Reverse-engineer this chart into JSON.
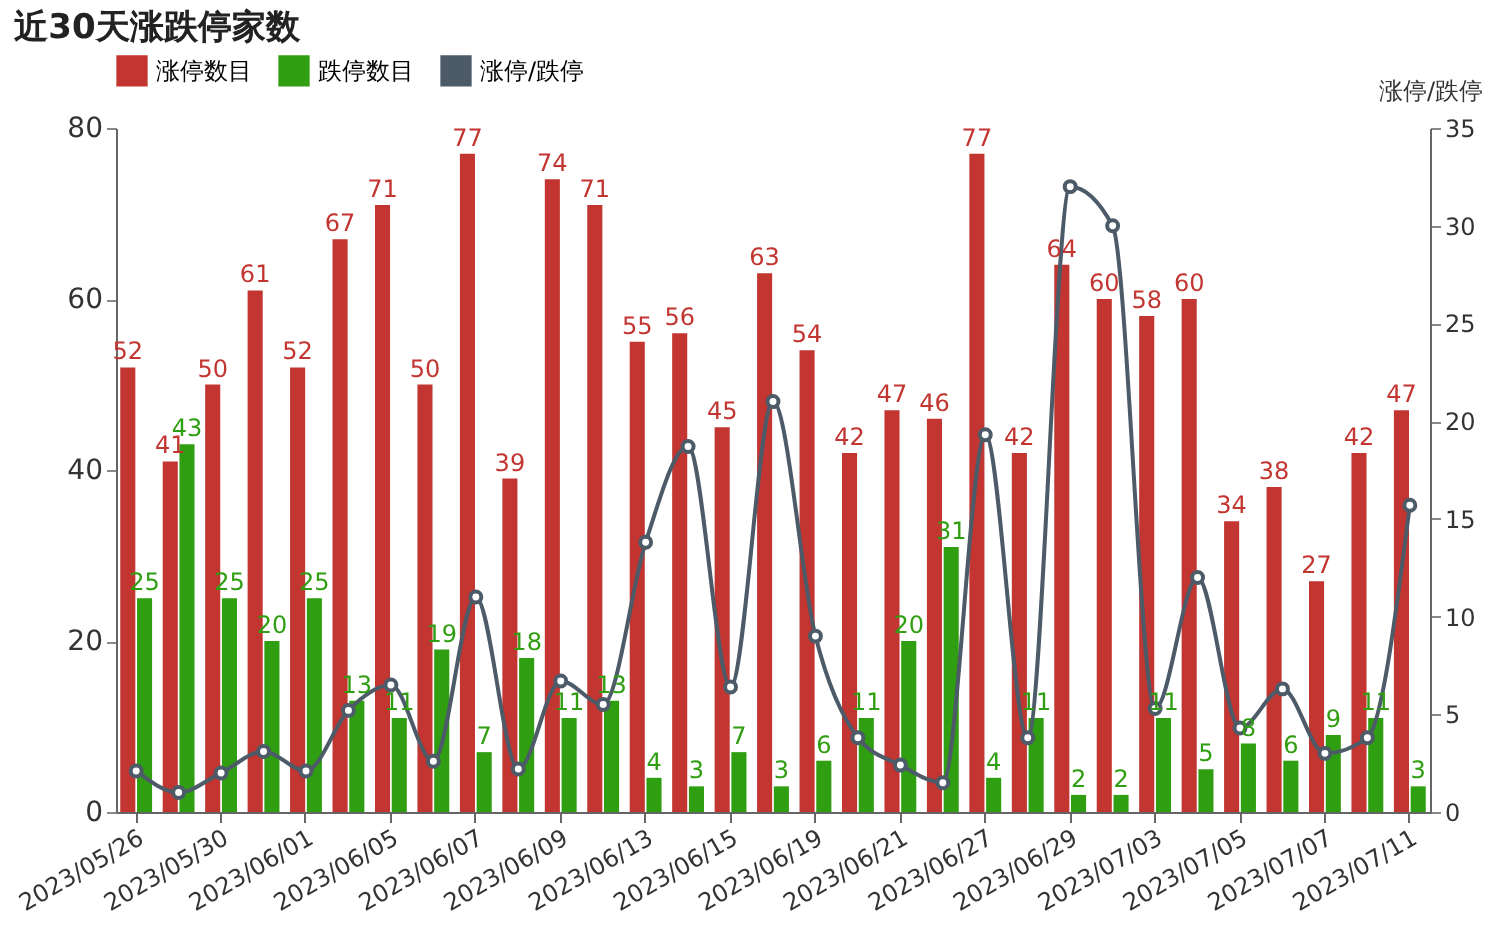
{
  "chart_data": {
    "type": "bar",
    "title": "近30天涨跌停家数",
    "y2label": "涨停/跌停",
    "categories": [
      "2023/05/26",
      null,
      "2023/05/30",
      null,
      "2023/06/01",
      null,
      "2023/06/05",
      null,
      "2023/06/07",
      null,
      "2023/06/09",
      null,
      "2023/06/13",
      null,
      "2023/06/15",
      null,
      "2023/06/19",
      null,
      "2023/06/21",
      null,
      "2023/06/27",
      null,
      "2023/06/29",
      null,
      "2023/07/03",
      null,
      "2023/07/05",
      null,
      "2023/07/07",
      null,
      "2023/07/11"
    ],
    "series": [
      {
        "name": "涨停数目",
        "color": "#c23531",
        "values": [
          52,
          41,
          50,
          61,
          52,
          67,
          71,
          50,
          77,
          39,
          74,
          71,
          55,
          56,
          45,
          63,
          54,
          42,
          47,
          46,
          77,
          42,
          64,
          60,
          58,
          60,
          34,
          38,
          27,
          42,
          47
        ],
        "value_labels": [
          "52",
          "41",
          "50",
          "61",
          "52",
          "67",
          "71",
          "50",
          "77",
          "39",
          "74",
          "71",
          "55",
          "56",
          "45",
          "63",
          "54",
          "42",
          "47",
          "46",
          "77",
          "42",
          "64",
          "60",
          "58",
          "60",
          "34",
          "38",
          "27",
          "42",
          "47"
        ]
      },
      {
        "name": "跌停数目",
        "color": "#2f9e10",
        "values": [
          25,
          43,
          25,
          20,
          25,
          13,
          11,
          19,
          7,
          18,
          11,
          13,
          4,
          3,
          7,
          3,
          6,
          11,
          20,
          31,
          4,
          11,
          2,
          2,
          11,
          5,
          8,
          6,
          9,
          11,
          3
        ],
        "value_labels": [
          "25",
          "43",
          "25",
          "20",
          "25",
          "13",
          "11",
          "19",
          "7",
          "18",
          "11",
          "13",
          "4",
          "3",
          "7",
          "3",
          "6",
          "11",
          "20",
          "31",
          "4",
          "11",
          "2",
          "2",
          "11",
          "5",
          "8",
          "6",
          "9",
          "11",
          "3"
        ]
      },
      {
        "name": "涨停/跌停",
        "type": "line",
        "axis": "y2",
        "color": "#4d5b69",
        "marker": "circle",
        "values": [
          2.1,
          1.0,
          2.0,
          3.1,
          2.1,
          5.2,
          6.5,
          2.6,
          11,
          2.2,
          6.7,
          5.5,
          13.8,
          18.7,
          6.4,
          21,
          9,
          3.8,
          2.4,
          1.5,
          19.3,
          3.8,
          32,
          30,
          5.3,
          12,
          4.3,
          6.3,
          3,
          3.8,
          15.7
        ]
      }
    ],
    "ylim": [
      0,
      80
    ],
    "yticks": [
      0,
      20,
      40,
      60,
      80
    ],
    "y2lim": [
      0,
      35
    ],
    "y2ticks": [
      0,
      5,
      10,
      15,
      20,
      25,
      30,
      35
    ],
    "grid": false,
    "legend": "top"
  }
}
